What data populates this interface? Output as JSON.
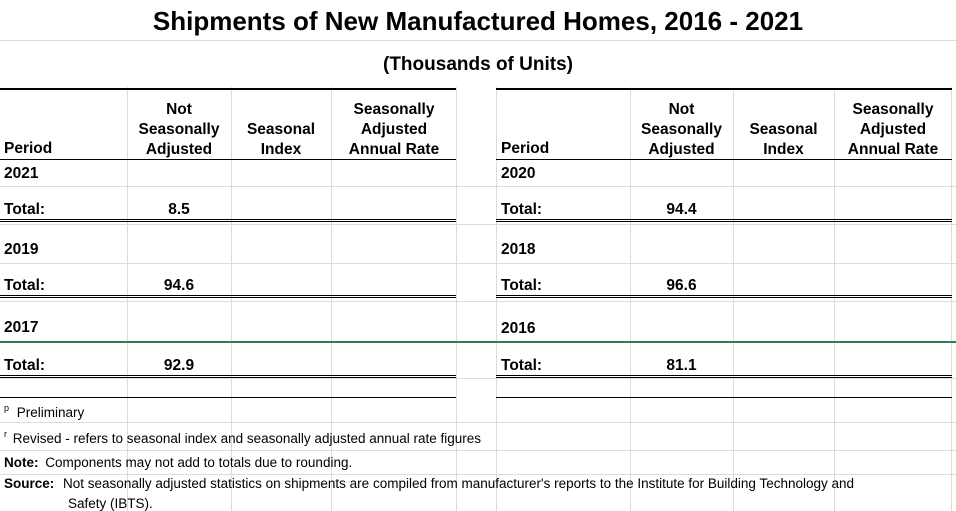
{
  "title": "Shipments of New Manufactured Homes, 2016 - 2021",
  "subtitle": "(Thousands of Units)",
  "columns": {
    "period": "Period",
    "nsa": [
      "Not",
      "Seasonally",
      "Adjusted"
    ],
    "index": [
      "Seasonal",
      "Index"
    ],
    "saar": [
      "Seasonally",
      "Adjusted",
      "Annual Rate"
    ]
  },
  "left": [
    {
      "year": "2021",
      "total_label": "Total:",
      "total": "8.5"
    },
    {
      "year": "2019",
      "total_label": "Total:",
      "total": "94.6"
    },
    {
      "year": "2017",
      "total_label": "Total:",
      "total": "92.9"
    }
  ],
  "right": [
    {
      "year": "2020",
      "total_label": "Total:",
      "total": "94.4"
    },
    {
      "year": "2018",
      "total_label": "Total:",
      "total": "96.6"
    },
    {
      "year": "2016",
      "total_label": "Total:",
      "total": "81.1"
    }
  ],
  "footnotes": {
    "p_mark": "p",
    "p_text": "Preliminary",
    "r_mark": "r",
    "r_text": "Revised - refers to seasonal index and seasonally adjusted annual rate figures",
    "note_label": "Note:",
    "note_text": "Components may not add to totals due to rounding.",
    "source_label": "Source:",
    "source_text": "Not seasonally adjusted statistics on shipments are compiled from manufacturer's reports to the Institute for Building Technology and",
    "source_text2": "Safety (IBTS)."
  }
}
